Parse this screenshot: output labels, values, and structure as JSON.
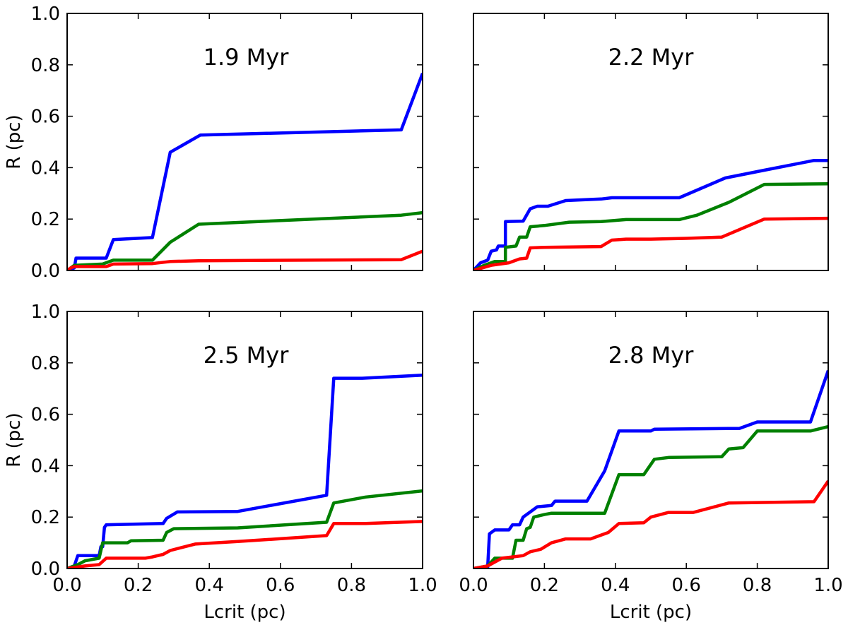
{
  "figure": {
    "xlabel": "Lcrit (pc)",
    "ylabel": "R (pc)",
    "xticks": [
      "0.0",
      "0.2",
      "0.4",
      "0.6",
      "0.8",
      "1.0"
    ],
    "yticks": [
      "0.0",
      "0.2",
      "0.4",
      "0.6",
      "0.8",
      "1.0"
    ]
  },
  "chart_data": [
    {
      "type": "line",
      "title": "1.9 Myr",
      "xlabel": "",
      "ylabel": "R (pc)",
      "xlim": [
        0,
        1
      ],
      "ylim": [
        0,
        1
      ],
      "series": [
        {
          "name": "blue",
          "color": "#0000ff",
          "points": [
            [
              0,
              0
            ],
            [
              0.02,
              0.01
            ],
            [
              0.025,
              0.048
            ],
            [
              0.11,
              0.048
            ],
            [
              0.13,
              0.12
            ],
            [
              0.24,
              0.128
            ],
            [
              0.29,
              0.46
            ],
            [
              0.375,
              0.527
            ],
            [
              0.94,
              0.547
            ],
            [
              1.0,
              0.767
            ]
          ]
        },
        {
          "name": "green",
          "color": "#008000",
          "points": [
            [
              0,
              0
            ],
            [
              0.01,
              0.01
            ],
            [
              0.02,
              0.02
            ],
            [
              0.1,
              0.025
            ],
            [
              0.13,
              0.04
            ],
            [
              0.24,
              0.04
            ],
            [
              0.29,
              0.11
            ],
            [
              0.37,
              0.18
            ],
            [
              0.94,
              0.215
            ],
            [
              1.0,
              0.225
            ]
          ]
        },
        {
          "name": "red",
          "color": "#ff0000",
          "points": [
            [
              0,
              0
            ],
            [
              0.01,
              0.01
            ],
            [
              0.02,
              0.015
            ],
            [
              0.11,
              0.015
            ],
            [
              0.13,
              0.025
            ],
            [
              0.24,
              0.027
            ],
            [
              0.29,
              0.035
            ],
            [
              0.37,
              0.038
            ],
            [
              0.94,
              0.042
            ],
            [
              1.0,
              0.075
            ]
          ]
        }
      ]
    },
    {
      "type": "line",
      "title": "2.2 Myr",
      "xlabel": "",
      "ylabel": "",
      "xlim": [
        0,
        1
      ],
      "ylim": [
        0,
        1
      ],
      "series": [
        {
          "name": "blue",
          "color": "#0000ff",
          "points": [
            [
              0,
              0
            ],
            [
              0.02,
              0.03
            ],
            [
              0.04,
              0.04
            ],
            [
              0.05,
              0.075
            ],
            [
              0.065,
              0.08
            ],
            [
              0.07,
              0.095
            ],
            [
              0.09,
              0.095
            ],
            [
              0.09,
              0.19
            ],
            [
              0.14,
              0.192
            ],
            [
              0.16,
              0.24
            ],
            [
              0.18,
              0.25
            ],
            [
              0.21,
              0.25
            ],
            [
              0.26,
              0.272
            ],
            [
              0.36,
              0.278
            ],
            [
              0.39,
              0.283
            ],
            [
              0.43,
              0.283
            ],
            [
              0.58,
              0.283
            ],
            [
              0.71,
              0.36
            ],
            [
              0.82,
              0.39
            ],
            [
              0.96,
              0.428
            ],
            [
              1.0,
              0.428
            ]
          ]
        },
        {
          "name": "green",
          "color": "#008000",
          "points": [
            [
              0,
              0
            ],
            [
              0.03,
              0.02
            ],
            [
              0.05,
              0.03
            ],
            [
              0.06,
              0.035
            ],
            [
              0.09,
              0.035
            ],
            [
              0.09,
              0.09
            ],
            [
              0.12,
              0.095
            ],
            [
              0.13,
              0.13
            ],
            [
              0.15,
              0.13
            ],
            [
              0.16,
              0.17
            ],
            [
              0.2,
              0.175
            ],
            [
              0.27,
              0.188
            ],
            [
              0.36,
              0.19
            ],
            [
              0.43,
              0.198
            ],
            [
              0.58,
              0.198
            ],
            [
              0.63,
              0.215
            ],
            [
              0.72,
              0.265
            ],
            [
              0.82,
              0.335
            ],
            [
              1.0,
              0.337
            ]
          ]
        },
        {
          "name": "red",
          "color": "#ff0000",
          "points": [
            [
              0,
              0
            ],
            [
              0.05,
              0.02
            ],
            [
              0.1,
              0.03
            ],
            [
              0.13,
              0.045
            ],
            [
              0.15,
              0.048
            ],
            [
              0.16,
              0.088
            ],
            [
              0.2,
              0.09
            ],
            [
              0.36,
              0.093
            ],
            [
              0.39,
              0.118
            ],
            [
              0.43,
              0.122
            ],
            [
              0.5,
              0.122
            ],
            [
              0.6,
              0.125
            ],
            [
              0.7,
              0.13
            ],
            [
              0.82,
              0.2
            ],
            [
              1.0,
              0.203
            ]
          ]
        }
      ]
    },
    {
      "type": "line",
      "title": "2.5 Myr",
      "xlabel": "Lcrit (pc)",
      "ylabel": "R (pc)",
      "xlim": [
        0,
        1
      ],
      "ylim": [
        0,
        1
      ],
      "series": [
        {
          "name": "blue",
          "color": "#0000ff",
          "points": [
            [
              0,
              0
            ],
            [
              0.02,
              0.01
            ],
            [
              0.03,
              0.05
            ],
            [
              0.09,
              0.05
            ],
            [
              0.095,
              0.085
            ],
            [
              0.1,
              0.085
            ],
            [
              0.105,
              0.16
            ],
            [
              0.11,
              0.17
            ],
            [
              0.27,
              0.175
            ],
            [
              0.28,
              0.195
            ],
            [
              0.31,
              0.22
            ],
            [
              0.48,
              0.222
            ],
            [
              0.73,
              0.285
            ],
            [
              0.75,
              0.74
            ],
            [
              0.83,
              0.74
            ],
            [
              1.0,
              0.752
            ]
          ]
        },
        {
          "name": "green",
          "color": "#008000",
          "points": [
            [
              0,
              0
            ],
            [
              0.03,
              0.015
            ],
            [
              0.05,
              0.03
            ],
            [
              0.09,
              0.04
            ],
            [
              0.1,
              0.1
            ],
            [
              0.17,
              0.1
            ],
            [
              0.18,
              0.108
            ],
            [
              0.27,
              0.11
            ],
            [
              0.28,
              0.14
            ],
            [
              0.3,
              0.155
            ],
            [
              0.48,
              0.158
            ],
            [
              0.73,
              0.18
            ],
            [
              0.75,
              0.255
            ],
            [
              0.84,
              0.278
            ],
            [
              1.0,
              0.302
            ]
          ]
        },
        {
          "name": "red",
          "color": "#ff0000",
          "points": [
            [
              0,
              0
            ],
            [
              0.05,
              0.01
            ],
            [
              0.09,
              0.015
            ],
            [
              0.11,
              0.04
            ],
            [
              0.22,
              0.04
            ],
            [
              0.24,
              0.045
            ],
            [
              0.27,
              0.055
            ],
            [
              0.29,
              0.07
            ],
            [
              0.36,
              0.095
            ],
            [
              0.48,
              0.105
            ],
            [
              0.73,
              0.128
            ],
            [
              0.75,
              0.175
            ],
            [
              0.84,
              0.175
            ],
            [
              1.0,
              0.183
            ]
          ]
        }
      ]
    },
    {
      "type": "line",
      "title": "2.8 Myr",
      "xlabel": "Lcrit (pc)",
      "ylabel": "",
      "xlim": [
        0,
        1
      ],
      "ylim": [
        0,
        1
      ],
      "series": [
        {
          "name": "blue",
          "color": "#0000ff",
          "points": [
            [
              0,
              0
            ],
            [
              0.03,
              0.005
            ],
            [
              0.04,
              0.005
            ],
            [
              0.045,
              0.135
            ],
            [
              0.06,
              0.15
            ],
            [
              0.1,
              0.15
            ],
            [
              0.11,
              0.17
            ],
            [
              0.13,
              0.17
            ],
            [
              0.14,
              0.2
            ],
            [
              0.16,
              0.22
            ],
            [
              0.18,
              0.24
            ],
            [
              0.22,
              0.245
            ],
            [
              0.23,
              0.262
            ],
            [
              0.32,
              0.262
            ],
            [
              0.37,
              0.38
            ],
            [
              0.41,
              0.535
            ],
            [
              0.5,
              0.535
            ],
            [
              0.51,
              0.542
            ],
            [
              0.75,
              0.545
            ],
            [
              0.8,
              0.57
            ],
            [
              0.95,
              0.57
            ],
            [
              1.0,
              0.77
            ]
          ]
        },
        {
          "name": "green",
          "color": "#008000",
          "points": [
            [
              0,
              0
            ],
            [
              0.04,
              0.01
            ],
            [
              0.06,
              0.04
            ],
            [
              0.11,
              0.04
            ],
            [
              0.12,
              0.11
            ],
            [
              0.14,
              0.11
            ],
            [
              0.15,
              0.155
            ],
            [
              0.16,
              0.16
            ],
            [
              0.17,
              0.2
            ],
            [
              0.2,
              0.21
            ],
            [
              0.22,
              0.215
            ],
            [
              0.37,
              0.215
            ],
            [
              0.41,
              0.365
            ],
            [
              0.48,
              0.365
            ],
            [
              0.51,
              0.425
            ],
            [
              0.55,
              0.432
            ],
            [
              0.7,
              0.435
            ],
            [
              0.72,
              0.465
            ],
            [
              0.76,
              0.47
            ],
            [
              0.8,
              0.535
            ],
            [
              0.95,
              0.535
            ],
            [
              1.0,
              0.552
            ]
          ]
        },
        {
          "name": "red",
          "color": "#ff0000",
          "points": [
            [
              0,
              0
            ],
            [
              0.04,
              0.01
            ],
            [
              0.08,
              0.04
            ],
            [
              0.14,
              0.05
            ],
            [
              0.16,
              0.065
            ],
            [
              0.19,
              0.075
            ],
            [
              0.22,
              0.1
            ],
            [
              0.26,
              0.115
            ],
            [
              0.33,
              0.115
            ],
            [
              0.38,
              0.14
            ],
            [
              0.41,
              0.175
            ],
            [
              0.48,
              0.178
            ],
            [
              0.5,
              0.2
            ],
            [
              0.55,
              0.218
            ],
            [
              0.62,
              0.218
            ],
            [
              0.72,
              0.255
            ],
            [
              0.96,
              0.26
            ],
            [
              1.0,
              0.34
            ]
          ]
        }
      ]
    }
  ]
}
